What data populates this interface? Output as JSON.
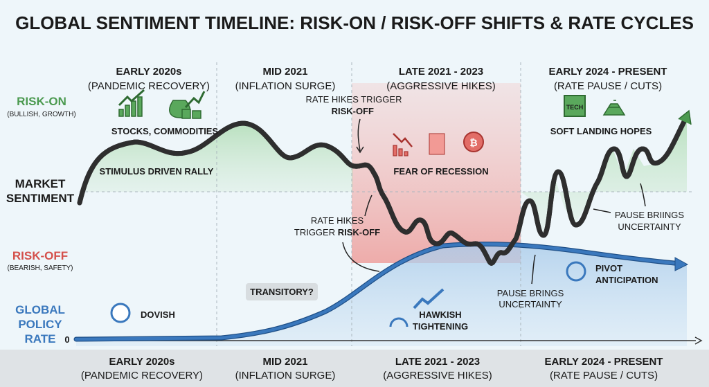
{
  "title": "GLOBAL SENTIMENT TIMELINE: RISK-ON / RISK-OFF SHIFTS & RATE CYCLES",
  "periods": [
    {
      "name": "EARLY 2020s",
      "sub": "(PANDEMIC RECOVERY)"
    },
    {
      "name": "MID 2021",
      "sub": "(INFLATION SURGE)"
    },
    {
      "name": "LATE 2021 - 2023",
      "sub": "(AGGRESSIVE HIKES)"
    },
    {
      "name": "EARLY 2024 - PRESENT",
      "sub": "(RATE PAUSE / CUTS)"
    }
  ],
  "axis": {
    "risk_on": "RISK-ON",
    "risk_on_sub": "(BULLISH, GROWTH)",
    "market_1": "MARKET",
    "market_2": "SENTIMENT",
    "risk_off": "RISK-OFF",
    "risk_off_sub": "(BEARISH, SAFETY)",
    "rate_1": "GLOBAL",
    "rate_2": "POLICY",
    "rate_3": "RATE",
    "zero": "0"
  },
  "annotations": {
    "stocks": "STOCKS, COMMODITIES",
    "rally": "STIMULUS DRIVEN RALLY",
    "hikes_top_1": "RATE HIKES TRIGGER",
    "hikes_top_2": "RISK-OFF",
    "hikes_mid_1": "RATE HIKES",
    "hikes_mid_2a": "TRIGGER ",
    "hikes_mid_2b": "RISK-OFF",
    "fear": "FEAR OF RECESSION",
    "soft": "SOFT LANDING HOPES",
    "tech": "TECH",
    "pause_right_1": "PAUSE BRIINGS",
    "pause_right_2": "UNCERTAINTY",
    "pause_mid_1": "PAUSE BRINGS",
    "pause_mid_2": "UNCERTAINTY",
    "pivot_1": "PIVOT",
    "pivot_2": "ANTICIPATION",
    "transitory": "TRANSITORY?",
    "dovish": "DOVISH",
    "hawkish_1": "HAWKISH",
    "hawkish_2": "TIGHTENING"
  },
  "colors": {
    "green": "#4c9a50",
    "red": "#d4504b",
    "blue": "#3a78bd"
  }
}
